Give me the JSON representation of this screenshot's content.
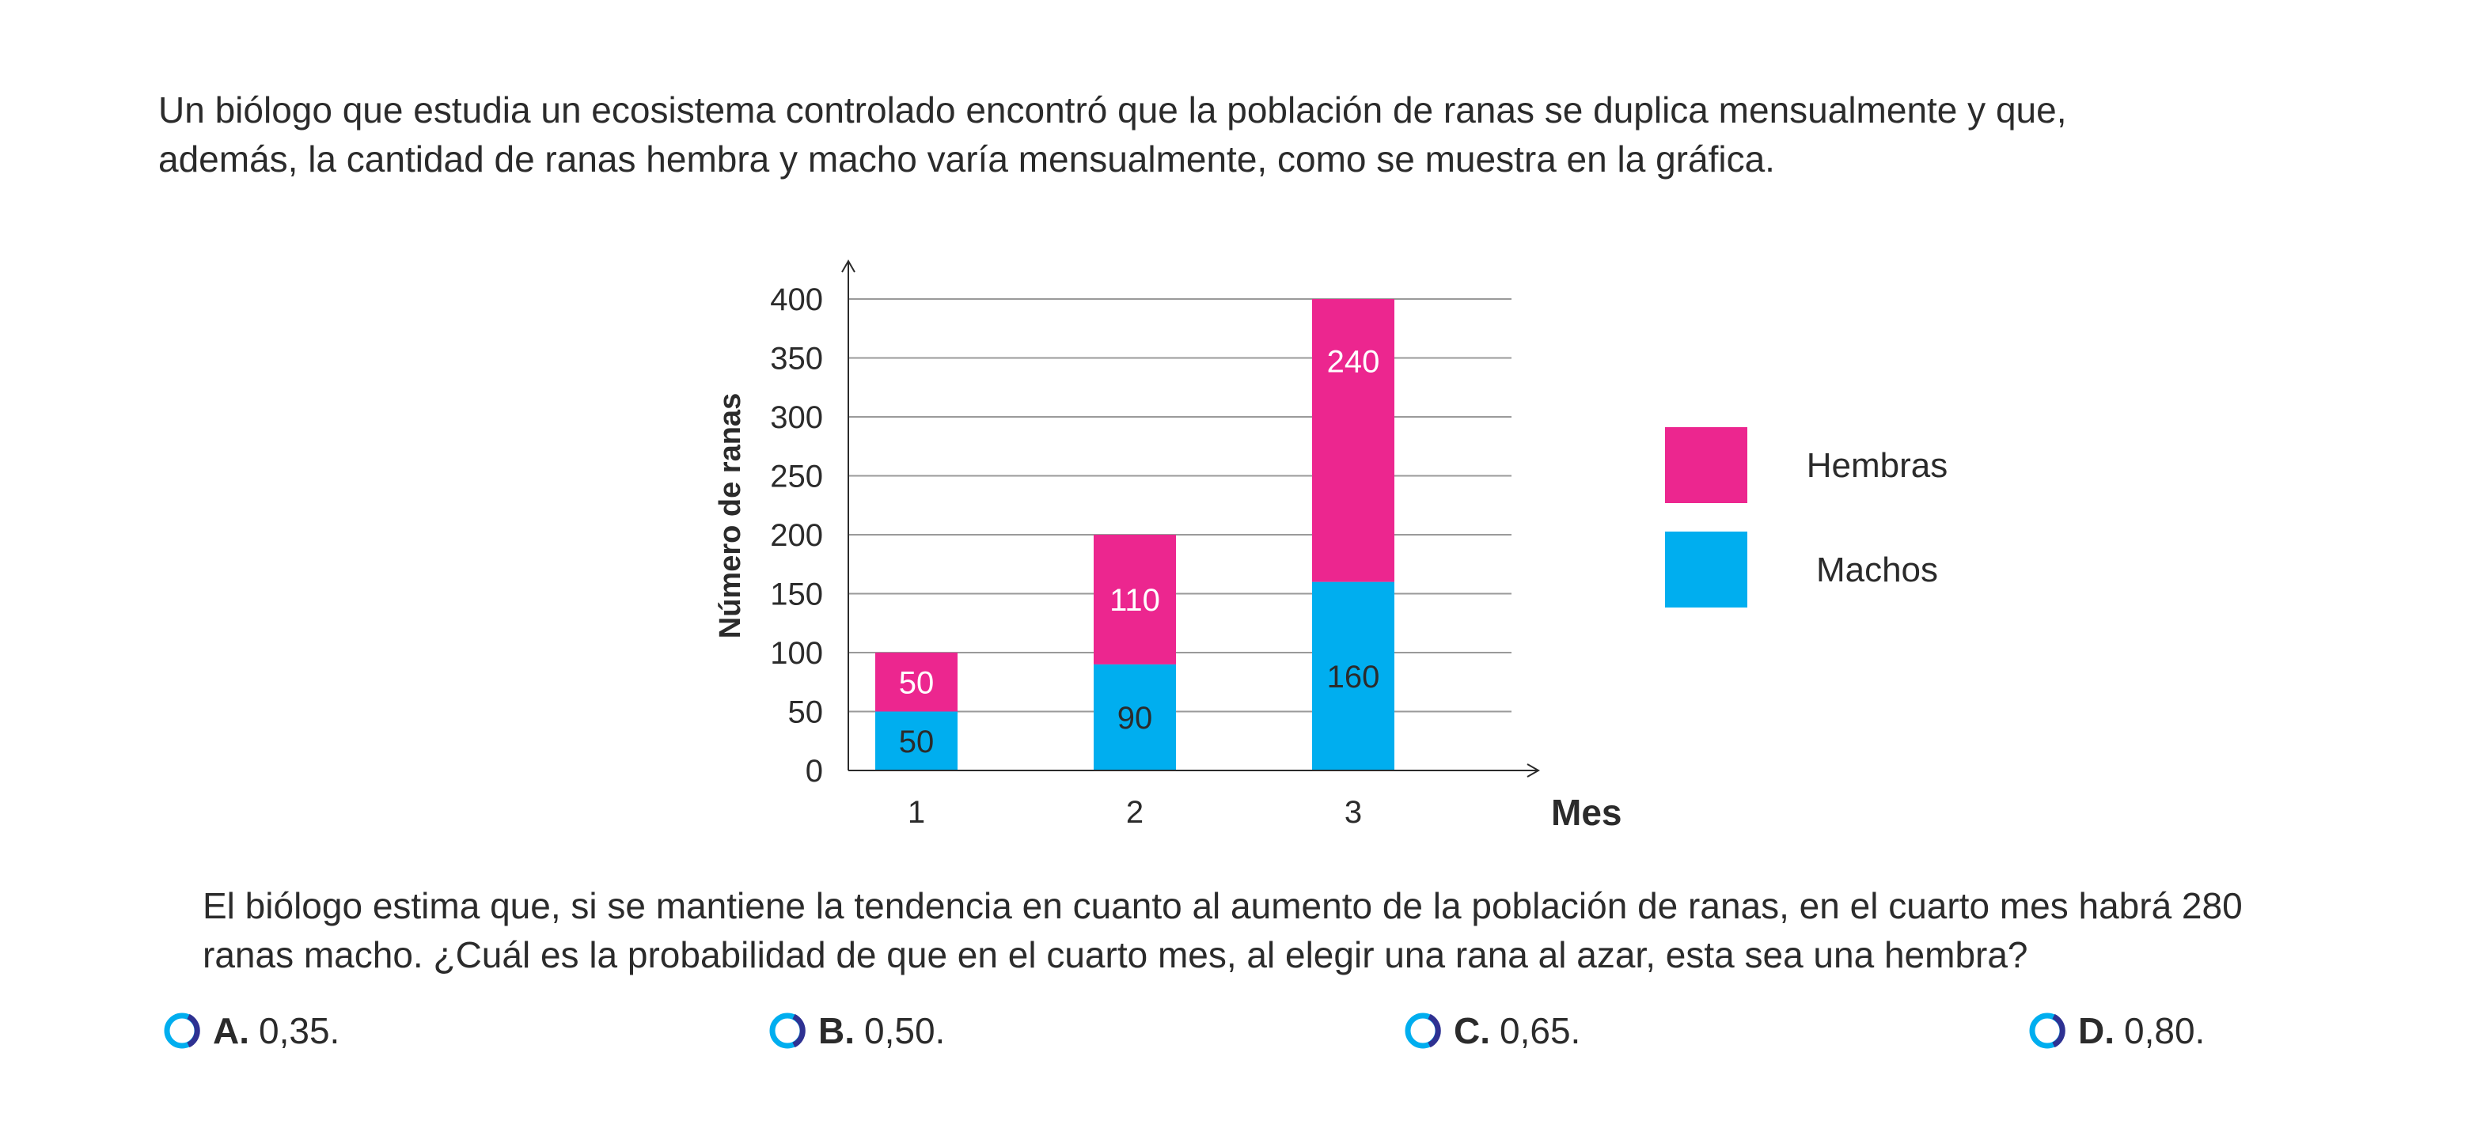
{
  "intro": {
    "line1": "Un biólogo que estudia un ecosistema controlado encontró que la población de ranas se duplica mensualmente y que,",
    "line2": "además, la cantidad de ranas hembra y macho varía mensualmente, como se muestra en la gráfica."
  },
  "chart_data": {
    "type": "bar",
    "stacked": true,
    "categories": [
      "1",
      "2",
      "3"
    ],
    "series": [
      {
        "name": "Machos",
        "values": [
          50,
          90,
          160
        ],
        "color": "#00AEEF",
        "label_color": "#2b2b2b"
      },
      {
        "name": "Hembras",
        "values": [
          50,
          110,
          240
        ],
        "color": "#EC268F",
        "label_color": "#ffffff"
      }
    ],
    "xlabel": "Mes",
    "ylabel": "Número de ranas",
    "ylim": [
      0,
      400
    ],
    "yticks": [
      0,
      50,
      100,
      150,
      200,
      250,
      300,
      350,
      400
    ],
    "grid": true,
    "legend": {
      "position": "right",
      "items": [
        {
          "label": "Hembras",
          "color": "#EC268F"
        },
        {
          "label": "Machos",
          "color": "#00AEEF"
        }
      ]
    }
  },
  "question": {
    "line1": "El biólogo estima que, si se mantiene la tendencia en cuanto al aumento de la población de ranas, en el cuarto mes habrá 280",
    "line2": "ranas macho. ¿Cuál es la probabilidad de que en el cuarto mes, al elegir una rana al azar, esta sea una hembra?"
  },
  "options": [
    {
      "letter": "A.",
      "value": "0,35."
    },
    {
      "letter": "B.",
      "value": "0,50."
    },
    {
      "letter": "C.",
      "value": "0,65."
    },
    {
      "letter": "D.",
      "value": "0,80."
    }
  ]
}
